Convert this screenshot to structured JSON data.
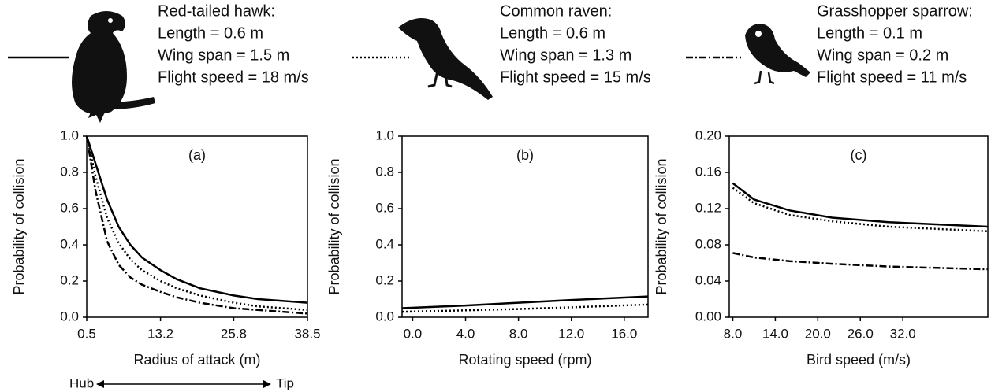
{
  "legend": [
    {
      "name": "Red-tailed hawk:",
      "lines": [
        "Length = 0.6 m",
        "Wing span = 1.5 m",
        "Flight speed = 18 m/s"
      ],
      "dash": "solid"
    },
    {
      "name": "Common raven:",
      "lines": [
        "Length = 0.6 m",
        "Wing span = 1.3 m",
        "Flight speed = 15 m/s"
      ],
      "dash": "dotted"
    },
    {
      "name": "Grasshopper sparrow:",
      "lines": [
        "Length = 0.1 m",
        "Wing span = 0.2 m",
        "Flight speed = 11 m/s"
      ],
      "dash": "dashdot"
    }
  ],
  "chart_data": [
    {
      "type": "line",
      "title": "(a)",
      "xlabel": "Radius of attack (m)",
      "ylabel": "Probability of collision",
      "annotations": [
        "Hub",
        "Tip"
      ],
      "xlim": [
        0.5,
        38.5
      ],
      "xticks": [
        0.5,
        13.2,
        25.8,
        38.5
      ],
      "ylim": [
        0,
        1
      ],
      "yticks": [
        {
          "value": 0,
          "label": "0.0"
        },
        0.2,
        0.4,
        0.6,
        0.8,
        {
          "value": 1,
          "label": "1.0"
        }
      ],
      "x": [
        0.5,
        2,
        4,
        6,
        8,
        10,
        13.2,
        16,
        20,
        25.8,
        30,
        38.5
      ],
      "series": [
        {
          "dash": "solid",
          "color": "#000000",
          "values": [
            1.0,
            0.85,
            0.65,
            0.5,
            0.4,
            0.33,
            0.26,
            0.21,
            0.16,
            0.12,
            0.1,
            0.08
          ]
        },
        {
          "dash": "dotted",
          "color": "#000000",
          "values": [
            1.0,
            0.78,
            0.55,
            0.41,
            0.32,
            0.26,
            0.2,
            0.16,
            0.12,
            0.08,
            0.06,
            0.04
          ]
        },
        {
          "dash": "dashdot",
          "color": "#000000",
          "values": [
            1.0,
            0.7,
            0.42,
            0.29,
            0.22,
            0.18,
            0.14,
            0.11,
            0.08,
            0.05,
            0.04,
            0.02
          ]
        }
      ]
    },
    {
      "type": "line",
      "title": "(b)",
      "xlabel": "Rotating speed (rpm)",
      "ylabel": "Probability of collision",
      "xlim": [
        -0.8,
        17.8
      ],
      "xticks": [
        {
          "value": 0,
          "label": "0.0"
        },
        {
          "value": 4,
          "label": "4.0"
        },
        {
          "value": 8,
          "label": "8.0"
        },
        {
          "value": 12,
          "label": "12.0"
        },
        {
          "value": 16,
          "label": "16.0"
        }
      ],
      "ylim": [
        0,
        1
      ],
      "yticks": [
        {
          "value": 0,
          "label": "0.0"
        },
        0.2,
        0.4,
        0.6,
        0.8,
        {
          "value": 1,
          "label": "1.0"
        }
      ],
      "x": [
        -0.8,
        4,
        8,
        12,
        17.8
      ],
      "series": [
        {
          "dash": "solid",
          "color": "#000000",
          "values": [
            0.05,
            0.065,
            0.08,
            0.095,
            0.115
          ]
        },
        {
          "dash": "dotted",
          "color": "#000000",
          "values": [
            0.03,
            0.038,
            0.045,
            0.055,
            0.07
          ]
        }
      ]
    },
    {
      "type": "line",
      "title": "(c)",
      "xlabel": "Bird speed (m/s)",
      "ylabel": "Probability of collision",
      "xlim": [
        7.5,
        44
      ],
      "xticks": [
        {
          "value": 8,
          "label": "8.0"
        },
        {
          "value": 14,
          "label": "14.0"
        },
        {
          "value": 20,
          "label": "20.0"
        },
        {
          "value": 26,
          "label": "26.0"
        },
        {
          "value": 32,
          "label": "32.0"
        }
      ],
      "ylim": [
        0,
        0.2
      ],
      "yticks": [
        {
          "value": 0,
          "label": "0.00"
        },
        0.04,
        0.08,
        0.12,
        0.16,
        {
          "value": 0.2,
          "label": "0.20"
        }
      ],
      "x": [
        8,
        11,
        16,
        22,
        30,
        44
      ],
      "series": [
        {
          "dash": "solid",
          "color": "#000000",
          "values": [
            0.148,
            0.13,
            0.118,
            0.11,
            0.105,
            0.1
          ]
        },
        {
          "dash": "dotted",
          "color": "#000000",
          "values": [
            0.143,
            0.126,
            0.113,
            0.106,
            0.1,
            0.095
          ]
        },
        {
          "dash": "dashdot",
          "color": "#000000",
          "values": [
            0.071,
            0.066,
            0.062,
            0.059,
            0.056,
            0.053
          ]
        }
      ]
    }
  ]
}
